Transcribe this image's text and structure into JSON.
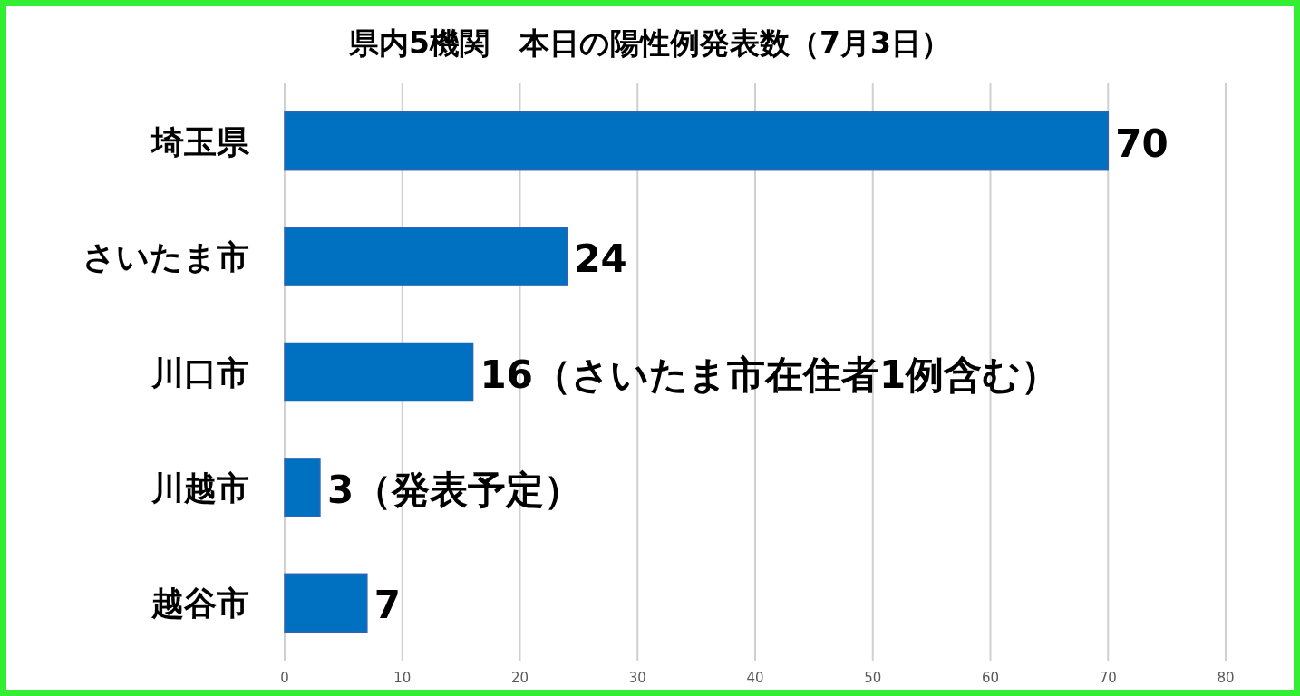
{
  "chart_data": {
    "type": "bar",
    "orientation": "horizontal",
    "title": "県内5機関　本日の陽性例発表数（7月3日）",
    "categories": [
      "埼玉県",
      "さいたま市",
      "川口市",
      "川越市",
      "越谷市"
    ],
    "values": [
      70,
      24,
      16,
      3,
      7
    ],
    "value_labels": [
      "70",
      "24",
      "16（さいたま市在住者1例含む）",
      "3（発表予定）",
      "7"
    ],
    "color": "#0070c0",
    "xlim": [
      0,
      80
    ],
    "xticks": [
      0,
      10,
      20,
      30,
      40,
      50,
      60,
      70,
      80
    ],
    "grid": "x"
  }
}
